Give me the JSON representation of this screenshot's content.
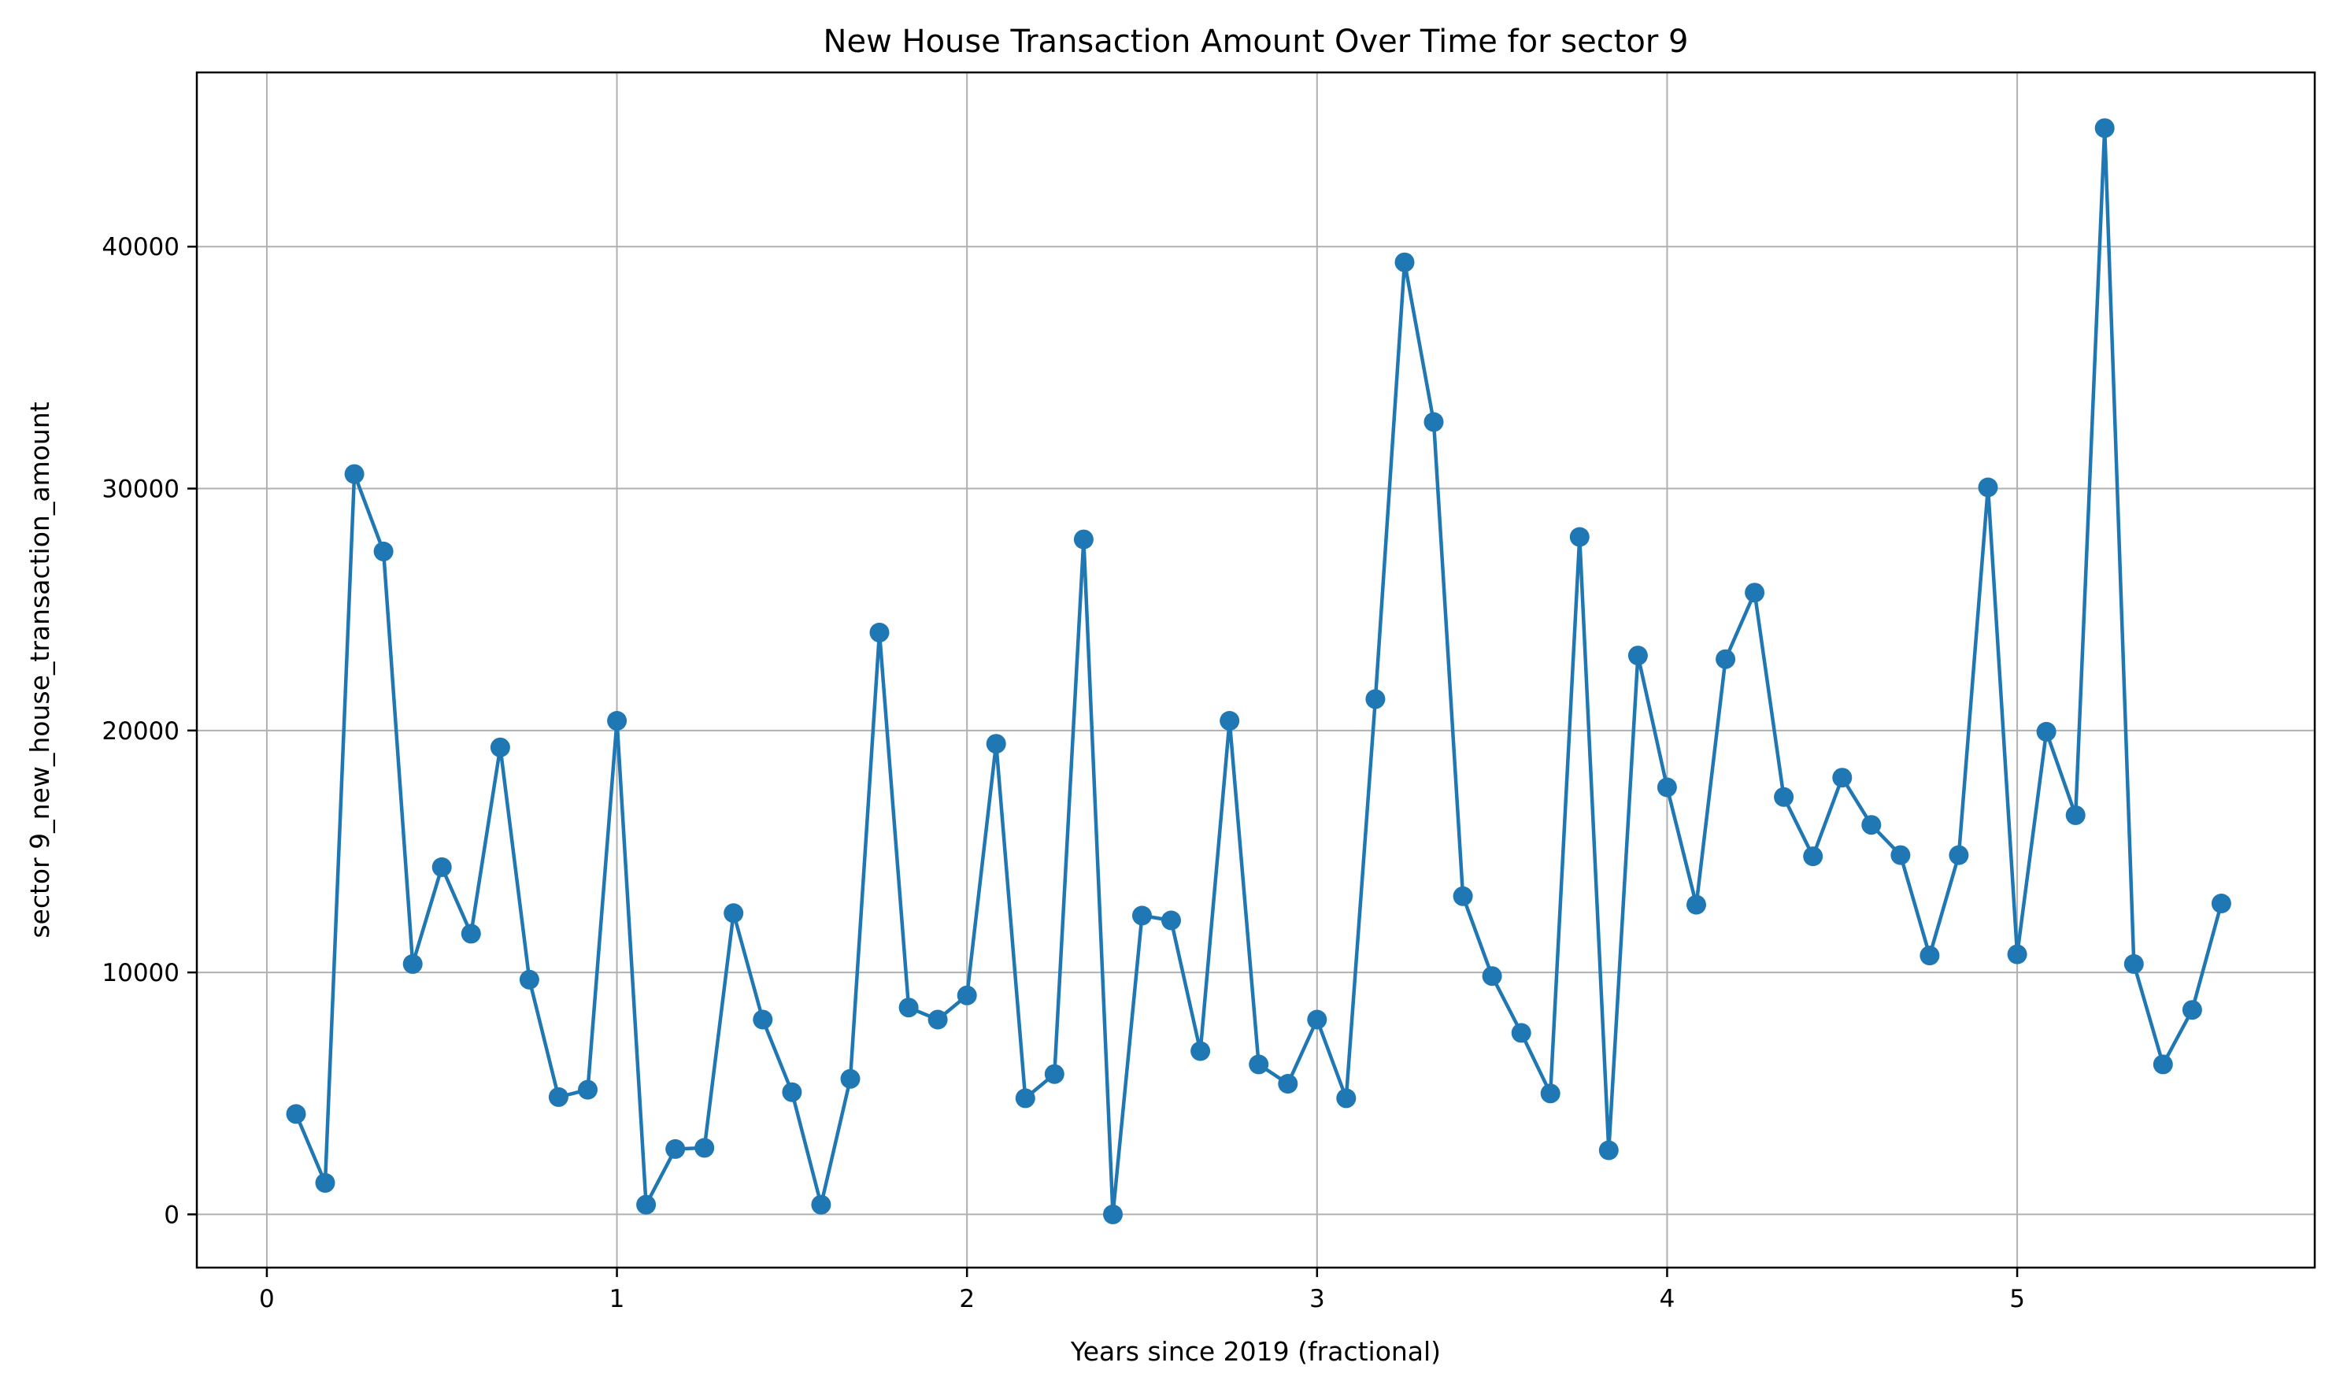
{
  "chart_data": {
    "type": "line",
    "title": "New House Transaction Amount Over Time for sector 9",
    "xlabel": "Years since 2019 (fractional)",
    "ylabel": "sector 9_new_house_transaction_amount",
    "xlim": [
      -0.2,
      5.85
    ],
    "ylim": [
      -2200,
      47200
    ],
    "xticks": [
      0,
      1,
      2,
      3,
      4,
      5
    ],
    "yticks": [
      0,
      10000,
      20000,
      30000,
      40000
    ],
    "grid": true,
    "color": "#1f77b4",
    "marker": "circle",
    "series": [
      {
        "x": [
          0.0833,
          0.1667,
          0.25,
          0.3333,
          0.4167,
          0.5,
          0.5833,
          0.6667,
          0.75,
          0.8333,
          0.9167,
          1.0,
          1.0833,
          1.1667,
          1.25,
          1.3333,
          1.4167,
          1.5,
          1.5833,
          1.6667,
          1.75,
          1.8333,
          1.9167,
          2.0,
          2.0833,
          2.1667,
          2.25,
          2.3333,
          2.4167,
          2.5,
          2.5833,
          2.6667,
          2.75,
          2.8333,
          2.9167,
          3.0,
          3.0833,
          3.1667,
          3.25,
          3.3333,
          3.4167,
          3.5,
          3.5833,
          3.6667,
          3.75,
          3.8333,
          3.9167,
          4.0,
          4.0833,
          4.1667,
          4.25,
          4.3333,
          4.4167,
          4.5,
          4.5833,
          4.6667,
          4.75,
          4.8333,
          4.9167,
          5.0,
          5.0833,
          5.1667,
          5.25,
          5.3333,
          5.4167,
          5.5,
          5.5833
        ],
        "y": [
          4150,
          1300,
          30600,
          27400,
          10350,
          14350,
          11600,
          19300,
          9700,
          4850,
          5150,
          20400,
          400,
          2700,
          2750,
          12450,
          8050,
          5050,
          400,
          5600,
          24050,
          8550,
          8050,
          9050,
          19450,
          4800,
          5800,
          27900,
          0,
          12350,
          12150,
          6750,
          20400,
          6200,
          5400,
          8050,
          4800,
          21300,
          39350,
          32750,
          13150,
          9850,
          7500,
          5000,
          28000,
          2650,
          23100,
          17650,
          12800,
          22950,
          25700,
          17250,
          14800,
          18050,
          16100,
          14850,
          10700,
          14850,
          30050,
          10750,
          19950,
          16500,
          44900,
          10350,
          6200,
          8450,
          12850
        ]
      }
    ]
  }
}
